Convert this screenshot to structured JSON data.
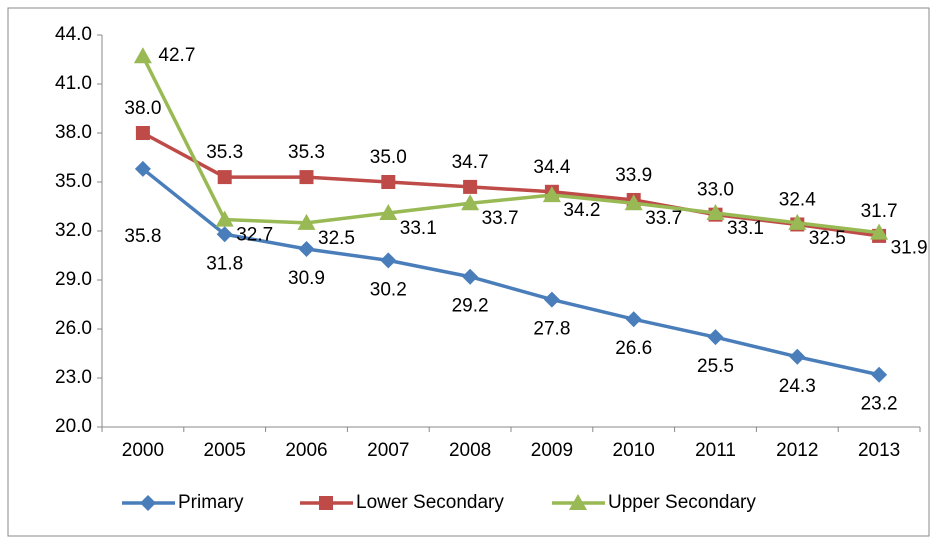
{
  "chart_data": {
    "type": "line",
    "categories": [
      "2000",
      "2005",
      "2006",
      "2007",
      "2008",
      "2009",
      "2010",
      "2011",
      "2012",
      "2013"
    ],
    "series": [
      {
        "name": "Primary",
        "color": "#4a7ebb",
        "marker": "diamond",
        "values": [
          35.8,
          31.8,
          30.9,
          30.2,
          29.2,
          27.8,
          26.6,
          25.5,
          24.3,
          23.2
        ],
        "value_labels": [
          "35.8",
          "31.8",
          "30.9",
          "30.2",
          "29.2",
          "27.8",
          "26.6",
          "25.5",
          "24.3",
          "23.2"
        ]
      },
      {
        "name": "Lower Secondary",
        "color": "#be4b48",
        "marker": "square",
        "values": [
          38.0,
          35.3,
          35.3,
          35.0,
          34.7,
          34.4,
          33.9,
          33.0,
          32.4,
          31.7
        ],
        "value_labels": [
          "38.0",
          "35.3",
          "35.3",
          "35.0",
          "34.7",
          "34.4",
          "33.9",
          "33.0",
          "32.4",
          "31.7"
        ]
      },
      {
        "name": "Upper Secondary",
        "color": "#98b954",
        "marker": "triangle",
        "values": [
          42.7,
          32.7,
          32.5,
          33.1,
          33.7,
          34.2,
          33.7,
          33.1,
          32.5,
          31.9
        ],
        "value_labels": [
          "42.7",
          "32.7",
          "32.5",
          "33.1",
          "33.7",
          "34.2",
          "33.7",
          "33.1",
          "32.5",
          "31.9"
        ]
      }
    ],
    "ylim": [
      20,
      44
    ],
    "yticks": [
      {
        "value": 20,
        "label": "20.0"
      },
      {
        "value": 23,
        "label": "23.0"
      },
      {
        "value": 26,
        "label": "26.0"
      },
      {
        "value": 29,
        "label": "29.0"
      },
      {
        "value": 32,
        "label": "32.0"
      },
      {
        "value": 35,
        "label": "35.0"
      },
      {
        "value": 38,
        "label": "38.0"
      },
      {
        "value": 41,
        "label": "41.0"
      },
      {
        "value": 44,
        "label": "44.0"
      }
    ],
    "grid": false,
    "legend": "bottom"
  }
}
